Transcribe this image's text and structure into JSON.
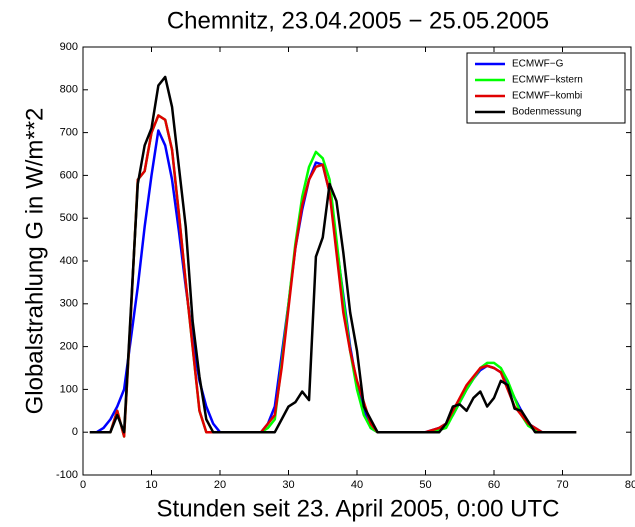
{
  "chart_data": {
    "type": "line",
    "title": "Chemnitz, 23.04.2005 − 25.05.2005",
    "x_label": "Stunden seit 23. April 2005, 0:00 UTC",
    "y_label": "Globalstrahlung G in W/m**2",
    "x": [
      1,
      2,
      3,
      4,
      5,
      6,
      7,
      8,
      9,
      10,
      11,
      12,
      13,
      14,
      15,
      16,
      17,
      18,
      19,
      20,
      21,
      22,
      23,
      24,
      25,
      26,
      27,
      28,
      29,
      30,
      31,
      32,
      33,
      34,
      35,
      36,
      37,
      38,
      39,
      40,
      41,
      42,
      43,
      44,
      45,
      46,
      47,
      48,
      49,
      50,
      51,
      52,
      53,
      54,
      55,
      56,
      57,
      58,
      59,
      60,
      61,
      62,
      63,
      64,
      65,
      66,
      67,
      68,
      69,
      70,
      71,
      72
    ],
    "series": [
      {
        "name": "ECMWF−G",
        "color": "#0000ff",
        "values": [
          0,
          0,
          10,
          30,
          60,
          100,
          220,
          340,
          480,
          600,
          705,
          670,
          590,
          470,
          340,
          220,
          120,
          60,
          20,
          0,
          0,
          0,
          0,
          0,
          0,
          0,
          20,
          60,
          180,
          300,
          430,
          520,
          590,
          630,
          625,
          560,
          440,
          320,
          200,
          110,
          50,
          10,
          0,
          0,
          0,
          0,
          0,
          0,
          0,
          0,
          5,
          10,
          20,
          40,
          70,
          100,
          125,
          145,
          155,
          150,
          140,
          115,
          80,
          50,
          20,
          10,
          0,
          0,
          0,
          0,
          0,
          0
        ]
      },
      {
        "name": "ECMWF−kstern",
        "color": "#00ff00",
        "values": [
          0,
          0,
          0,
          0,
          50,
          -10,
          280,
          590,
          610,
          700,
          740,
          730,
          660,
          510,
          350,
          200,
          50,
          0,
          0,
          0,
          0,
          0,
          0,
          0,
          0,
          0,
          10,
          30,
          160,
          300,
          440,
          550,
          620,
          655,
          640,
          590,
          450,
          310,
          190,
          100,
          40,
          10,
          0,
          0,
          0,
          0,
          0,
          0,
          0,
          0,
          0,
          5,
          10,
          40,
          70,
          100,
          125,
          150,
          162,
          162,
          150,
          120,
          80,
          40,
          15,
          5,
          0,
          0,
          0,
          0,
          0,
          0
        ]
      },
      {
        "name": "ECMWF−kombi",
        "color": "#e00000",
        "values": [
          0,
          0,
          0,
          0,
          50,
          -10,
          280,
          590,
          610,
          700,
          740,
          730,
          660,
          510,
          350,
          200,
          50,
          0,
          0,
          0,
          0,
          0,
          0,
          0,
          0,
          0,
          20,
          40,
          150,
          290,
          430,
          530,
          590,
          620,
          625,
          560,
          420,
          280,
          190,
          120,
          70,
          20,
          0,
          0,
          0,
          0,
          0,
          0,
          0,
          0,
          5,
          10,
          20,
          50,
          80,
          110,
          130,
          150,
          155,
          150,
          140,
          100,
          60,
          40,
          20,
          10,
          0,
          0,
          0,
          0,
          0,
          0
        ]
      },
      {
        "name": "Bodenmessung",
        "color": "#000000",
        "values": [
          0,
          0,
          0,
          0,
          40,
          0,
          290,
          580,
          670,
          710,
          810,
          830,
          760,
          620,
          480,
          260,
          130,
          30,
          0,
          0,
          0,
          0,
          0,
          0,
          0,
          0,
          0,
          0,
          30,
          60,
          70,
          95,
          75,
          410,
          455,
          580,
          540,
          420,
          280,
          190,
          60,
          30,
          0,
          0,
          0,
          0,
          0,
          0,
          0,
          0,
          0,
          0,
          20,
          60,
          65,
          50,
          80,
          95,
          60,
          80,
          120,
          110,
          55,
          50,
          25,
          0,
          0,
          0,
          0,
          0,
          0,
          0
        ]
      }
    ],
    "xlim": [
      0,
      80
    ],
    "xticks": [
      0,
      10,
      20,
      30,
      40,
      50,
      60,
      70,
      80
    ],
    "ylim": [
      -100,
      900
    ],
    "yticks": [
      -100,
      0,
      100,
      200,
      300,
      400,
      500,
      600,
      700,
      800,
      900
    ],
    "legend": "upper right"
  }
}
